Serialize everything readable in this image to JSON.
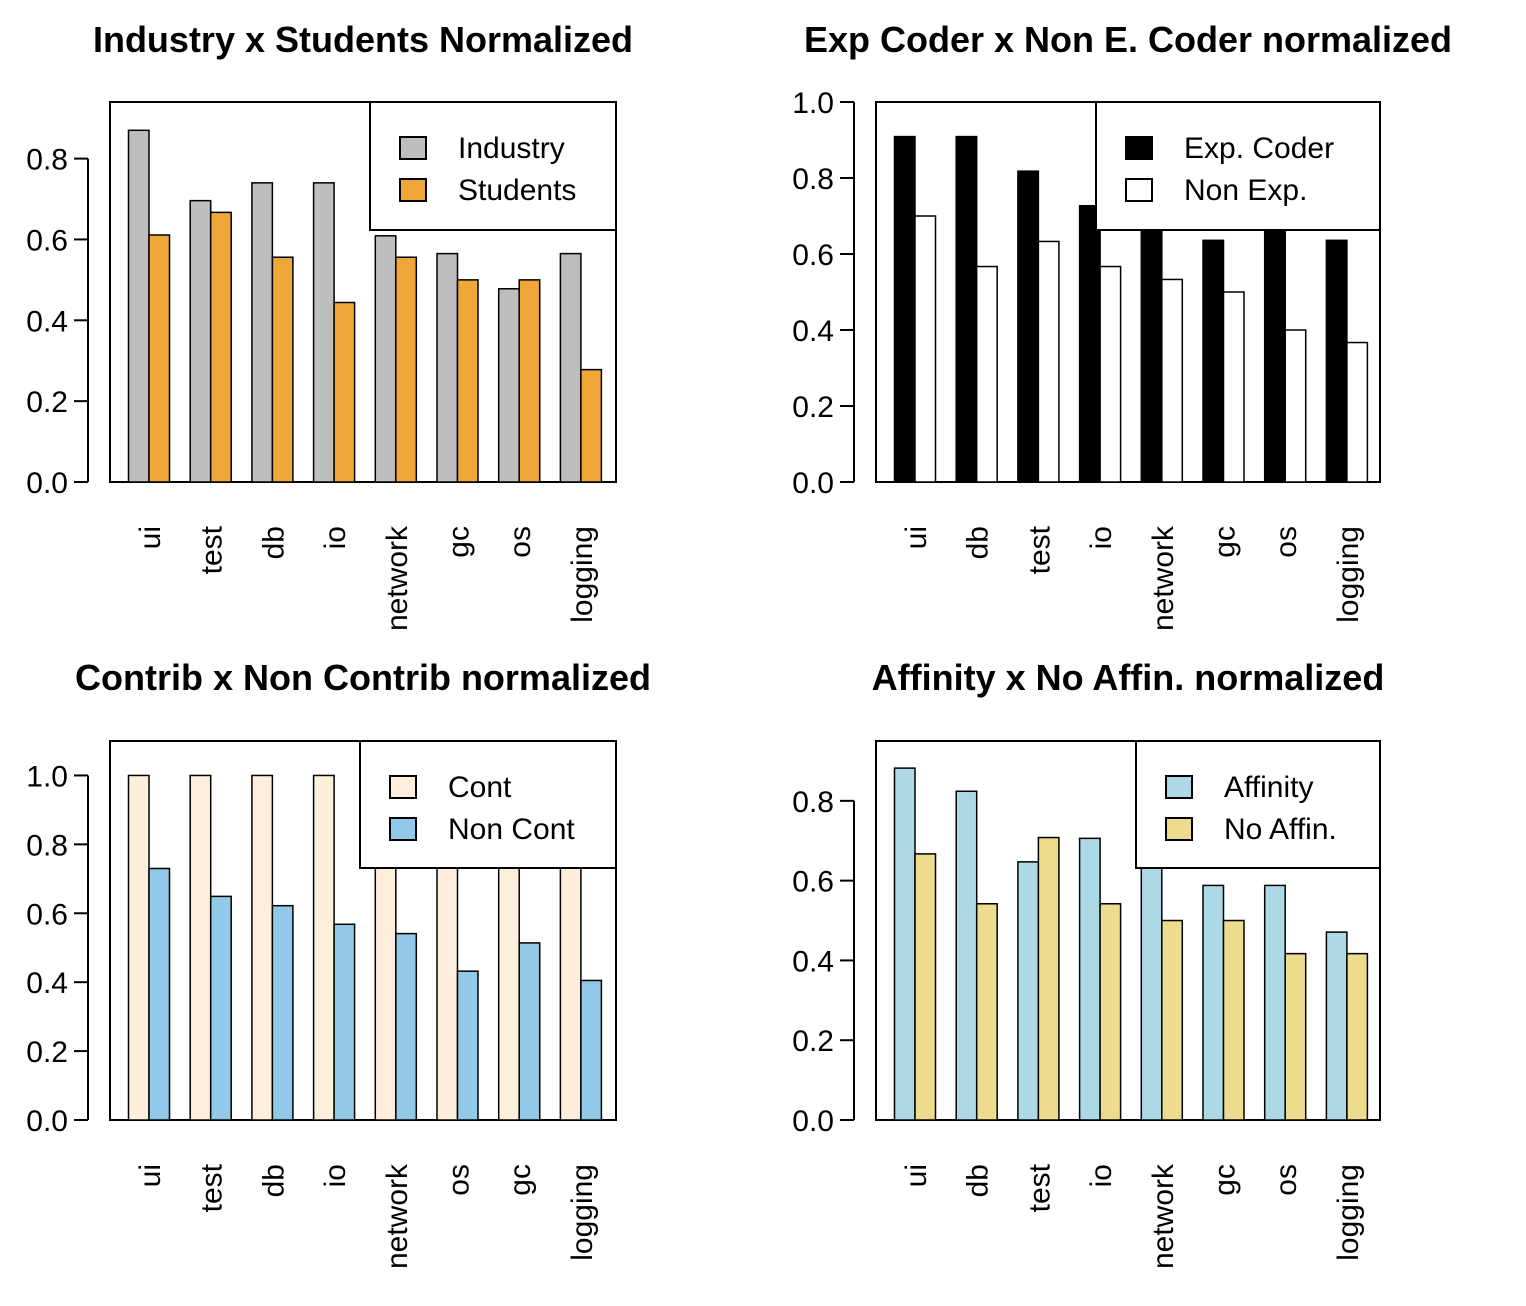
{
  "chart_data": [
    {
      "type": "bar",
      "title": "Industry x Students Normalized",
      "categories": [
        "ui",
        "test",
        "db",
        "io",
        "network",
        "gc",
        "os",
        "logging"
      ],
      "series": [
        {
          "name": "Industry",
          "color": "#bebebe",
          "values": [
            0.87,
            0.696,
            0.74,
            0.74,
            0.609,
            0.565,
            0.478,
            0.565
          ]
        },
        {
          "name": "Students",
          "color": "#f0a73a",
          "values": [
            0.611,
            0.667,
            0.556,
            0.444,
            0.556,
            0.5,
            0.5,
            0.278
          ]
        }
      ],
      "ylim": [
        0,
        0.94
      ],
      "yticks": [
        "0.0",
        "0.2",
        "0.4",
        "0.6",
        "0.8"
      ],
      "legend": "top-right"
    },
    {
      "type": "bar",
      "title": "Exp Coder x Non E. Coder normalized",
      "categories": [
        "ui",
        "db",
        "test",
        "io",
        "network",
        "gc",
        "os",
        "logging"
      ],
      "series": [
        {
          "name": "Exp. Coder",
          "color": "#000000",
          "values": [
            0.909,
            0.909,
            0.818,
            0.727,
            0.68,
            0.636,
            0.68,
            0.636
          ]
        },
        {
          "name": "Non Exp.",
          "color": "#ffffff",
          "values": [
            0.7,
            0.567,
            0.633,
            0.567,
            0.533,
            0.5,
            0.4,
            0.367
          ]
        }
      ],
      "ylim": [
        0,
        1.0
      ],
      "yticks": [
        "0.0",
        "0.2",
        "0.4",
        "0.6",
        "0.8",
        "1.0"
      ],
      "legend": "top-right"
    },
    {
      "type": "bar",
      "title": "Contrib x Non Contrib normalized",
      "categories": [
        "ui",
        "test",
        "db",
        "io",
        "network",
        "os",
        "gc",
        "logging"
      ],
      "series": [
        {
          "name": "Cont",
          "color": "#fdefdb",
          "values": [
            1.0,
            1.0,
            1.0,
            1.0,
            0.85,
            0.85,
            0.85,
            0.85
          ]
        },
        {
          "name": "Non Cont",
          "color": "#93c9e8",
          "values": [
            0.73,
            0.649,
            0.622,
            0.568,
            0.541,
            0.432,
            0.514,
            0.405
          ]
        }
      ],
      "ylim": [
        0,
        1.1
      ],
      "yticks": [
        "0.0",
        "0.2",
        "0.4",
        "0.6",
        "0.8",
        "1.0"
      ],
      "legend": "top-right"
    },
    {
      "type": "bar",
      "title": "Affinity x No Affin. normalized",
      "categories": [
        "ui",
        "db",
        "test",
        "io",
        "network",
        "gc",
        "os",
        "logging"
      ],
      "series": [
        {
          "name": "Affinity",
          "color": "#add8e6",
          "values": [
            0.882,
            0.824,
            0.647,
            0.706,
            0.647,
            0.588,
            0.588,
            0.471
          ]
        },
        {
          "name": "No Affin.",
          "color": "#eedc8e",
          "values": [
            0.667,
            0.542,
            0.708,
            0.542,
            0.5,
            0.5,
            0.417,
            0.417
          ]
        }
      ],
      "ylim": [
        0,
        0.95
      ],
      "yticks": [
        "0.0",
        "0.2",
        "0.4",
        "0.6",
        "0.8"
      ],
      "legend": "top-right"
    }
  ]
}
